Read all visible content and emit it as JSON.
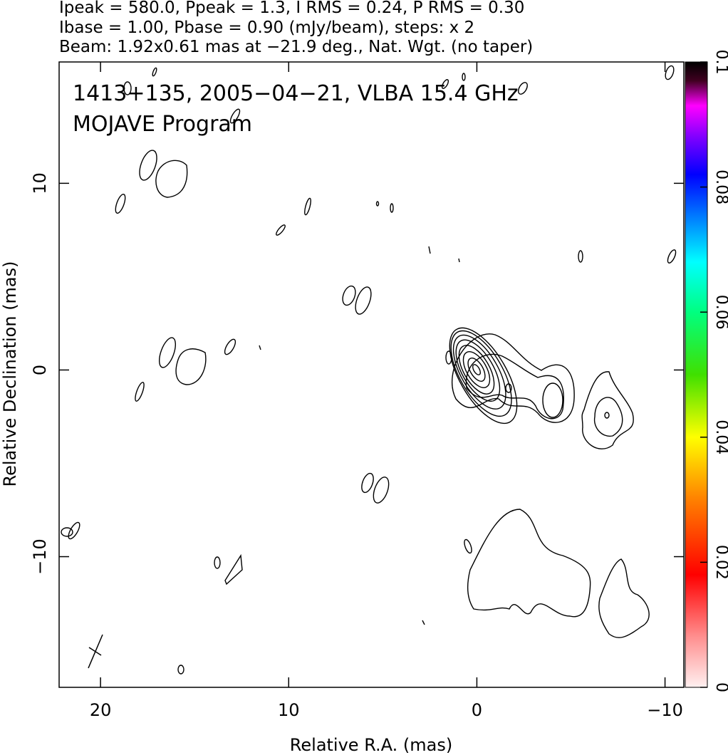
{
  "chart_data": {
    "type": "contour",
    "header": [
      "Ipeak = 580.0, Ppeak = 1.3, I RMS = 0.24, P RMS = 0.30",
      "Ibase = 1.00, Pbase = 0.90 (mJy/beam), steps: x 2",
      "Beam: 1.92x0.61 mas at −21.9 deg., Nat. Wgt. (no taper)"
    ],
    "annotations": [
      "1413+135, 2005−04−21, VLBA 15.4 GHz",
      "MOJAVE Program"
    ],
    "xlabel": "Relative R.A. (mas)",
    "ylabel": "Relative Declination (mas)",
    "xlim": [
      22.2,
      -11.0
    ],
    "ylim": [
      -17.0,
      16.5
    ],
    "xticks": [
      20,
      10,
      0,
      {
        "value": -10,
        "label": "−10"
      }
    ],
    "yticks": [
      {
        "value": -10,
        "label": "−10"
      },
      0,
      10
    ],
    "colorbar": {
      "lim": [
        0,
        0.1
      ],
      "ticks": [
        0,
        0.02,
        0.04,
        0.06,
        0.08,
        0.1
      ]
    }
  }
}
